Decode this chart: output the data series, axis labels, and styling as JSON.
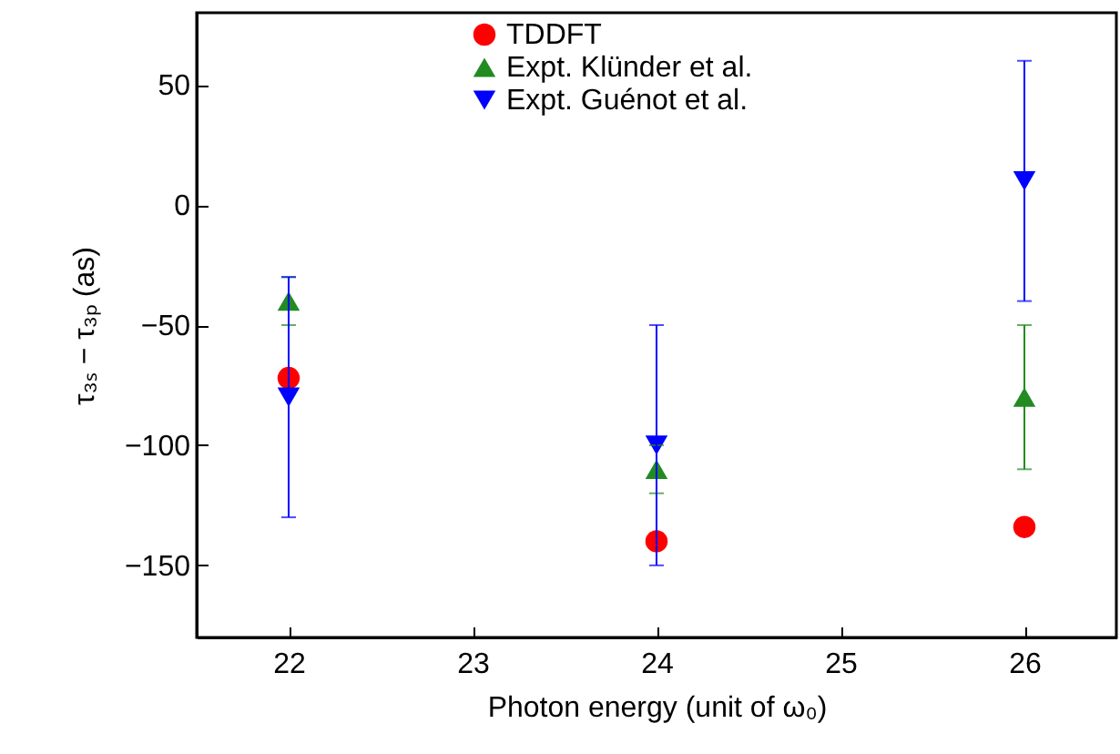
{
  "chart_data": {
    "type": "scatter",
    "xlabel": "Photon energy (unit of ω₀)",
    "ylabel": "τ₃ₛ − τ₃ₚ (as)",
    "x": [
      22,
      24,
      26
    ],
    "series": [
      {
        "name": "TDDFT",
        "color": "#ff0000",
        "marker": "circle",
        "values": [
          -72,
          -140,
          -134
        ]
      },
      {
        "name": "Expt. Klünder et al.",
        "color": "#228b22",
        "marker": "triangle",
        "values": [
          -40,
          -110,
          -80
        ],
        "errors": [
          [
            -50,
            -30
          ],
          [
            -120,
            -100
          ],
          [
            -110,
            -50
          ]
        ]
      },
      {
        "name": "Expt. Guénot et al.",
        "color": "#0000ff",
        "marker": "triangle-down",
        "values": [
          -80,
          -100,
          10
        ],
        "errors": [
          [
            -130,
            -30
          ],
          [
            -150,
            -50
          ],
          [
            -40,
            60
          ]
        ]
      }
    ],
    "xlim": [
      21.5,
      26.5
    ],
    "xticks": [
      22,
      23,
      24,
      25,
      26
    ],
    "ylim": [
      -180,
      80
    ],
    "yticks": [
      -150,
      -100,
      -50,
      0,
      50
    ],
    "grid": false,
    "legend": "top"
  }
}
